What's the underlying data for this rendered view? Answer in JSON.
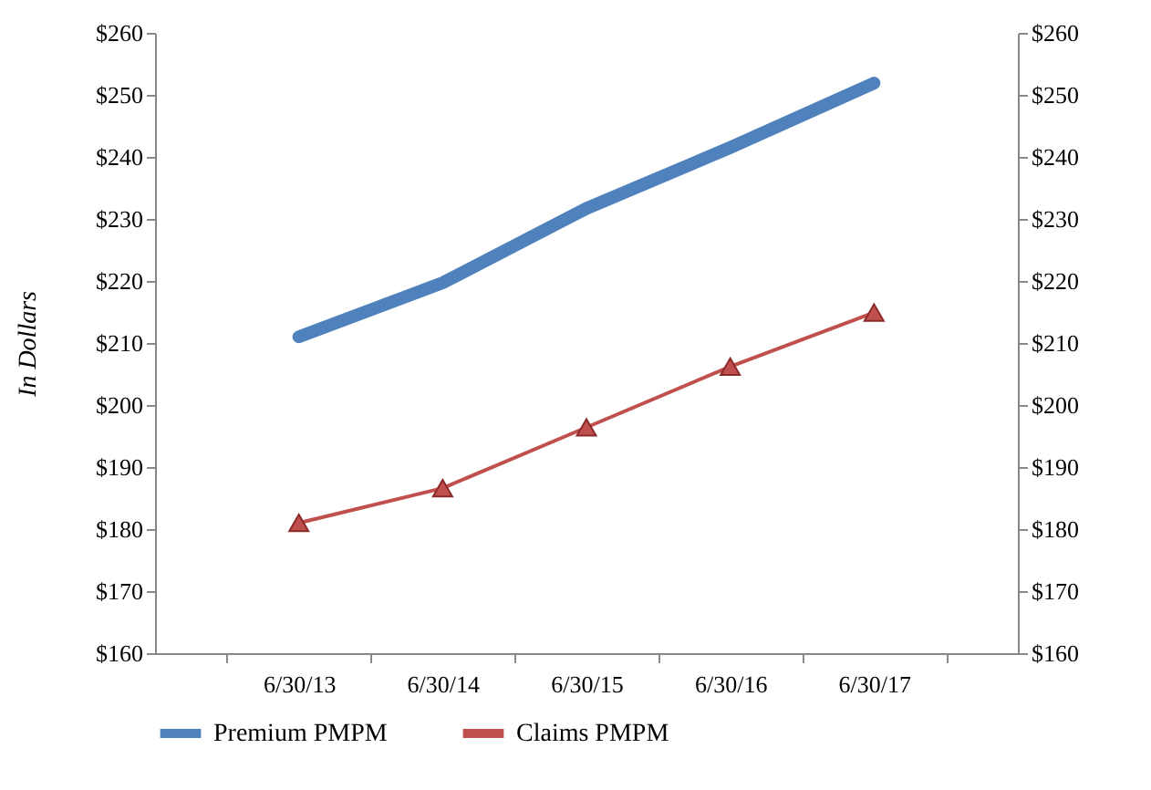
{
  "chart_data": {
    "type": "line",
    "ylabel": "In Dollars",
    "categories": [
      "6/30/13",
      "6/30/14",
      "6/30/15",
      "6/30/16",
      "6/30/17"
    ],
    "series": [
      {
        "name": "Premium PMPM",
        "color": "#4f81bd",
        "marker": "none",
        "values": [
          211,
          219.7,
          231.7,
          241.5,
          251.9
        ]
      },
      {
        "name": "Claims PMPM",
        "color": "#c0504d",
        "marker": "triangle",
        "values": [
          181,
          186.6,
          196.4,
          206.2,
          214.9
        ]
      }
    ],
    "ylim": [
      160,
      260
    ],
    "yticks": [
      {
        "value": 160,
        "label": "$160"
      },
      {
        "value": 170,
        "label": "$170"
      },
      {
        "value": 180,
        "label": "$180"
      },
      {
        "value": 190,
        "label": "$190"
      },
      {
        "value": 200,
        "label": "$200"
      },
      {
        "value": 210,
        "label": "$210"
      },
      {
        "value": 220,
        "label": "$220"
      },
      {
        "value": 230,
        "label": "$230"
      },
      {
        "value": 240,
        "label": "$240"
      },
      {
        "value": 250,
        "label": "$250"
      },
      {
        "value": 260,
        "label": "$260"
      }
    ],
    "y2lim": [
      160,
      260
    ],
    "y2ticks": [
      {
        "value": 160,
        "label": "$160"
      },
      {
        "value": 170,
        "label": "$170"
      },
      {
        "value": 180,
        "label": "$180"
      },
      {
        "value": 190,
        "label": "$190"
      },
      {
        "value": 200,
        "label": "$200"
      },
      {
        "value": 210,
        "label": "$210"
      },
      {
        "value": 220,
        "label": "$220"
      },
      {
        "value": 230,
        "label": "$230"
      },
      {
        "value": 240,
        "label": "$240"
      },
      {
        "value": 250,
        "label": "$250"
      },
      {
        "value": 260,
        "label": "$260"
      }
    ],
    "grid": false,
    "legend": "bottom"
  }
}
